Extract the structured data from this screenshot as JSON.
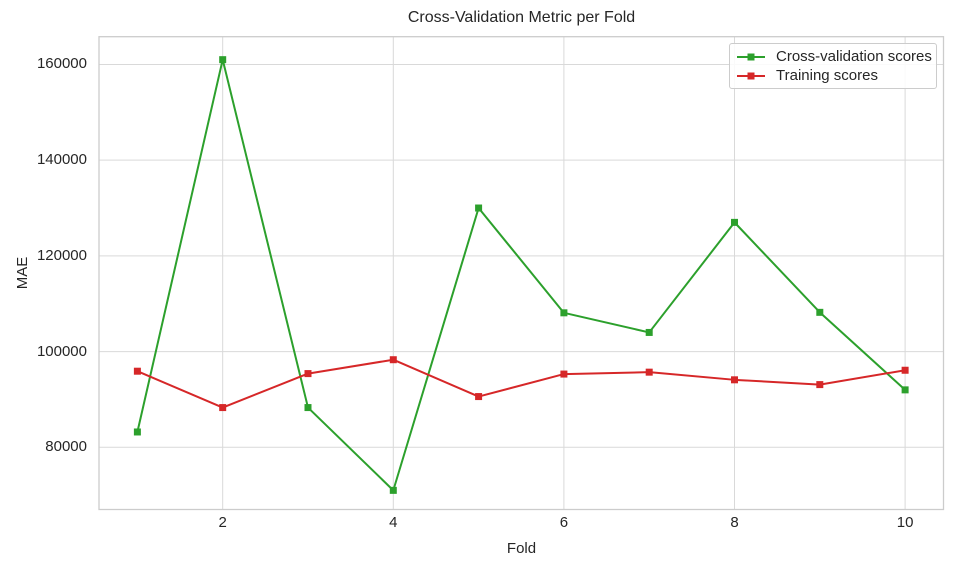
{
  "chart_data": {
    "type": "line",
    "title": "Cross-Validation Metric per Fold",
    "xlabel": "Fold",
    "ylabel": "MAE",
    "x": [
      1,
      2,
      3,
      4,
      5,
      6,
      7,
      8,
      9,
      10
    ],
    "series": [
      {
        "name": "Cross-validation scores",
        "color": "#2ca02c",
        "marker": "square",
        "values": [
          83200,
          161000,
          88300,
          71000,
          130000,
          108100,
          104000,
          127000,
          108200,
          92000
        ]
      },
      {
        "name": "Training scores",
        "color": "#d62728",
        "marker": "square",
        "values": [
          95900,
          88300,
          95400,
          98300,
          90600,
          95300,
          95700,
          94100,
          93100,
          96100
        ]
      }
    ],
    "xticks": [
      2,
      4,
      6,
      8,
      10
    ],
    "yticks": [
      80000,
      100000,
      120000,
      140000,
      160000
    ],
    "xlim": [
      0.55,
      10.45
    ],
    "ylim": [
      67000,
      165800
    ],
    "grid": true,
    "legend_position": "upper right",
    "colors": {
      "text": "#262626",
      "grid": "#d9d9d9",
      "spine": "#cccccc",
      "background": "#ffffff"
    }
  }
}
